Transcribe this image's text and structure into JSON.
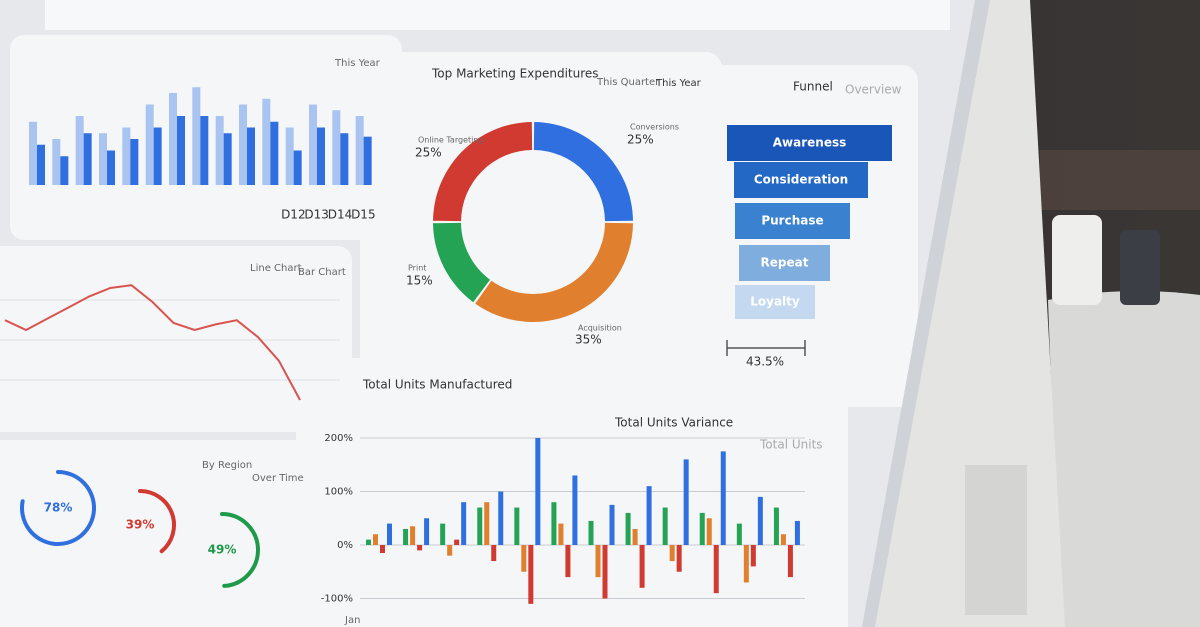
{
  "top_bars": {
    "tab": "This Year",
    "categories": [
      null,
      null,
      null,
      null,
      null,
      null,
      null,
      null,
      null,
      null,
      null,
      "D12",
      "D13",
      "D14",
      "D15"
    ],
    "ylim": [
      0,
      100
    ],
    "series": [
      {
        "color": "#a9c4f0",
        "values": [
          55,
          40,
          60,
          45,
          50,
          70,
          80,
          85,
          60,
          70,
          75,
          50,
          70,
          65,
          60
        ]
      },
      {
        "color": "#2f6fe0",
        "values": [
          35,
          25,
          45,
          30,
          40,
          50,
          60,
          60,
          45,
          50,
          55,
          30,
          50,
          45,
          42
        ]
      }
    ]
  },
  "line": {
    "tabs": [
      "Line Chart",
      "Bar Chart"
    ],
    "ylim": [
      0,
      100
    ],
    "values": [
      57,
      50,
      58,
      66,
      74,
      80,
      82,
      70,
      55,
      50,
      54,
      57,
      45,
      28,
      0
    ]
  },
  "gauges": {
    "tabs": [
      "By Region",
      "Over Time"
    ],
    "values": [
      78,
      39,
      49
    ],
    "value_labels": [
      "78%",
      "39%",
      "49%"
    ],
    "colors": [
      "#2f6fe0",
      "#d03a30",
      "#1e9a4a"
    ]
  },
  "donut": {
    "title": "Top Marketing Expenditures",
    "tabs": [
      "This Quarter",
      "This Year"
    ],
    "labels": [
      "Conversions",
      "Acquisition",
      "Print",
      "Online Targeting"
    ],
    "values": [
      25,
      35,
      15,
      25
    ],
    "value_labels": [
      "25%",
      "35%",
      "15%",
      "25%"
    ],
    "colors": [
      "#2f6fe0",
      "#e07f2e",
      "#24a355",
      "#d03a30"
    ]
  },
  "funnel": {
    "title": "Funnel",
    "tab": "Overview",
    "stages": [
      "Awareness",
      "Consideration",
      "Purchase",
      "Repeat",
      "Loyalty"
    ],
    "rate": "43.5%"
  },
  "units": {
    "title": "Total Units Manufactured",
    "subtitle": "Total Units Variance",
    "tab": "Total Units",
    "ylim": [
      -100,
      200
    ],
    "yticks": [
      {
        "value": 200,
        "label": "200%"
      },
      {
        "value": 100,
        "label": "100%"
      },
      {
        "value": 0,
        "label": "0%"
      },
      {
        "value": -100,
        "label": "-100%"
      }
    ],
    "categories": [
      "Jan",
      null,
      null,
      null,
      null,
      null,
      null,
      null,
      null,
      null,
      null,
      null
    ],
    "series": [
      {
        "color": "#24a355",
        "values": [
          10,
          30,
          40,
          70,
          70,
          80,
          45,
          60,
          70,
          60,
          40,
          70
        ]
      },
      {
        "color": "#e07f2e",
        "values": [
          20,
          35,
          -20,
          80,
          -50,
          40,
          -60,
          30,
          -30,
          50,
          -70,
          20
        ]
      },
      {
        "color": "#d03a30",
        "values": [
          -15,
          -10,
          10,
          -30,
          -110,
          -60,
          -100,
          -80,
          -50,
          -90,
          -40,
          -60
        ]
      },
      {
        "color": "#2f6fe0",
        "values": [
          40,
          50,
          80,
          100,
          200,
          130,
          75,
          110,
          160,
          175,
          90,
          45
        ]
      }
    ]
  }
}
